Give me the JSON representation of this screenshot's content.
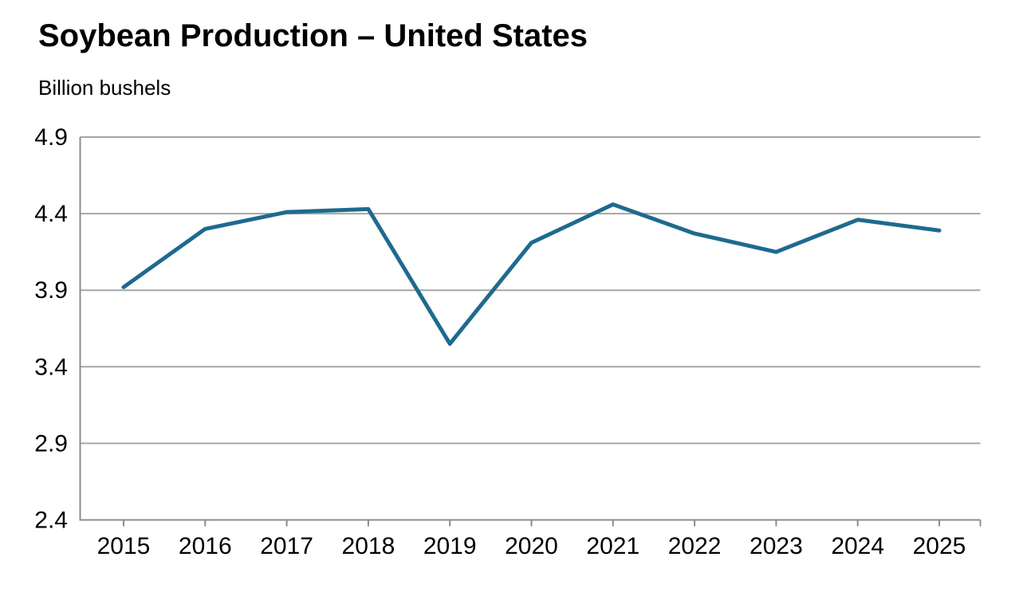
{
  "chart_data": {
    "type": "line",
    "title": "Soybean Production – United States",
    "subtitle": "Billion bushels",
    "categories": [
      "2015",
      "2016",
      "2017",
      "2018",
      "2019",
      "2020",
      "2021",
      "2022",
      "2023",
      "2024",
      "2025"
    ],
    "values": [
      3.92,
      4.3,
      4.41,
      4.43,
      3.55,
      4.21,
      4.46,
      4.27,
      4.15,
      4.36,
      4.29
    ],
    "xlabel": "",
    "ylabel": "Billion bushels",
    "ylim": [
      2.4,
      4.9
    ],
    "yticks": [
      2.4,
      2.9,
      3.4,
      3.9,
      4.4,
      4.9
    ],
    "grid": "horizontal-only",
    "legend": "none",
    "markers": "none",
    "colors": {
      "line": "#1e6a8e",
      "gridline": "#a6a6a6",
      "axis": "#8c8c8c",
      "text": "#000000",
      "background": "#ffffff"
    }
  }
}
